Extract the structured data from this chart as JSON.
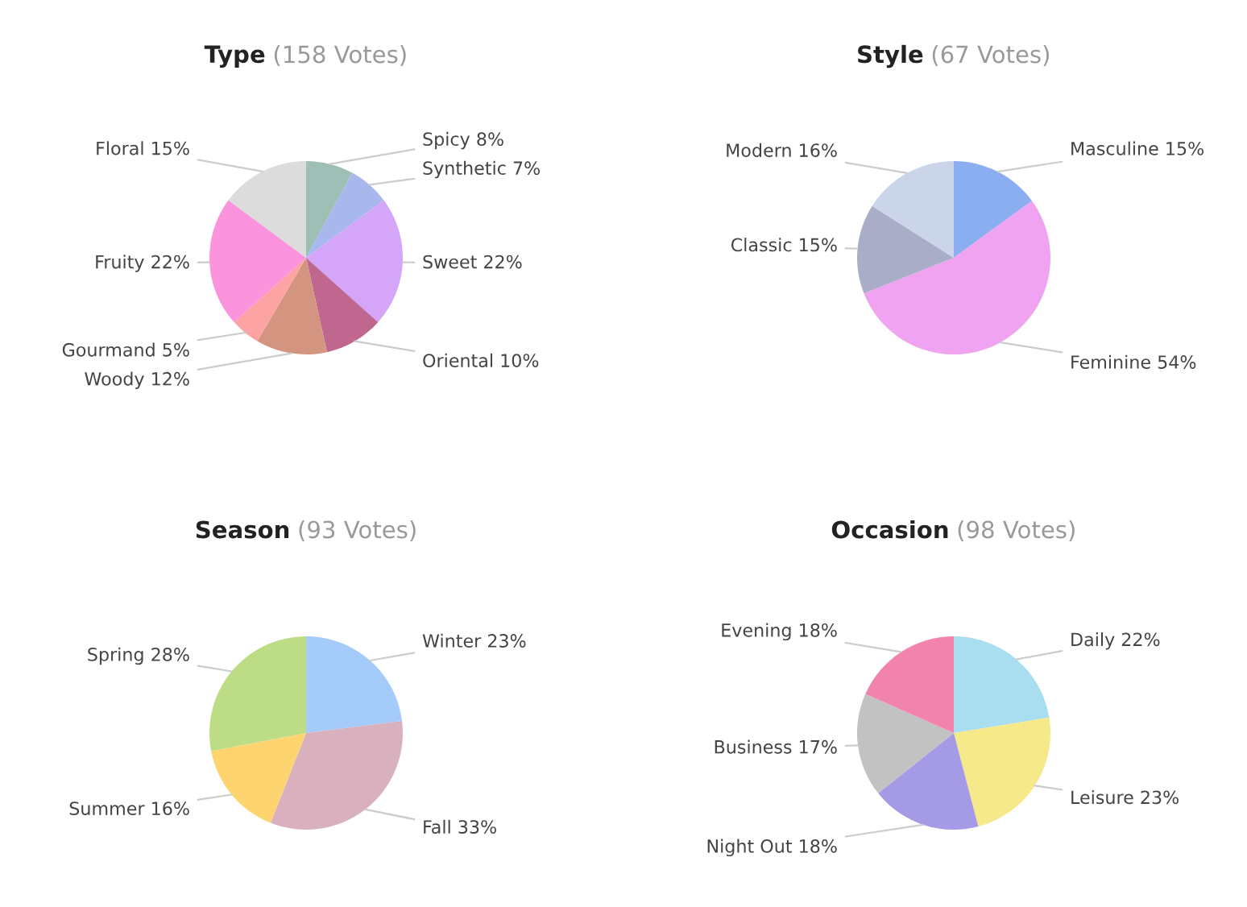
{
  "chart_data": [
    {
      "type": "pie",
      "title": "Type",
      "subtitle": "(158 Votes)",
      "categories": [
        "Spicy",
        "Synthetic",
        "Sweet",
        "Oriental",
        "Woody",
        "Gourmand",
        "Fruity",
        "Floral"
      ],
      "values": [
        8,
        7,
        22,
        10,
        12,
        5,
        22,
        15
      ],
      "value_labels": [
        "8%",
        "7%",
        "22%",
        "10%",
        "12%",
        "5%",
        "22%",
        "15%"
      ],
      "colors": [
        "#9dbfb6",
        "#a8b8ec",
        "#d4a5f9",
        "#c0678f",
        "#d49580",
        "#fda3a3",
        "#fb93dd",
        "#dcdcdc"
      ]
    },
    {
      "type": "pie",
      "title": "Style",
      "subtitle": "(67 Votes)",
      "categories": [
        "Masculine",
        "Feminine",
        "Classic",
        "Modern"
      ],
      "values": [
        15,
        54,
        15,
        16
      ],
      "value_labels": [
        "15%",
        "54%",
        "15%",
        "16%"
      ],
      "colors": [
        "#8aaef0",
        "#f0a3f0",
        "#a9adc8",
        "#cbd5ea"
      ]
    },
    {
      "type": "pie",
      "title": "Season",
      "subtitle": "(93 Votes)",
      "categories": [
        "Winter",
        "Fall",
        "Summer",
        "Spring"
      ],
      "values": [
        23,
        33,
        16,
        28
      ],
      "value_labels": [
        "23%",
        "33%",
        "16%",
        "28%"
      ],
      "colors": [
        "#a5cbfb",
        "#d9b1be",
        "#fdd46f",
        "#bcdd85"
      ]
    },
    {
      "type": "pie",
      "title": "Occasion",
      "subtitle": "(98 Votes)",
      "categories": [
        "Daily",
        "Leisure",
        "Night Out",
        "Business",
        "Evening"
      ],
      "values": [
        22,
        23,
        18,
        17,
        18
      ],
      "value_labels": [
        "22%",
        "23%",
        "18%",
        "17%",
        "18%"
      ],
      "colors": [
        "#a9ddf0",
        "#f5e98a",
        "#a59ae6",
        "#c2c2c2",
        "#f283ad"
      ]
    }
  ]
}
